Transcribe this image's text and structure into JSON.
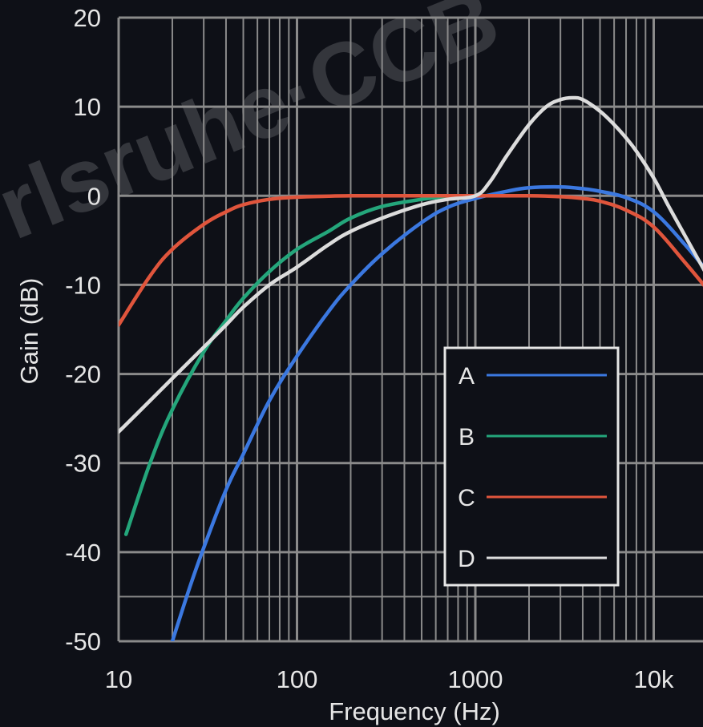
{
  "watermark": "rlsruhe·CCB",
  "chart_data": {
    "type": "line",
    "xscale": "log",
    "xlim": [
      10,
      20000
    ],
    "ylim": [
      -50,
      20
    ],
    "xlabel": "Frequency (Hz)",
    "ylabel": "Gain (dB)",
    "grid": true,
    "legend_position": "bottom-right",
    "xticks": [
      {
        "value": 10,
        "label": "10"
      },
      {
        "value": 100,
        "label": "100"
      },
      {
        "value": 1000,
        "label": "1000"
      },
      {
        "value": 10000,
        "label": "10k"
      }
    ],
    "yticks": [
      {
        "value": 20,
        "label": "20"
      },
      {
        "value": 10,
        "label": "10"
      },
      {
        "value": 0,
        "label": "0"
      },
      {
        "value": -10,
        "label": "-10"
      },
      {
        "value": -20,
        "label": "-20"
      },
      {
        "value": -30,
        "label": "-30"
      },
      {
        "value": -40,
        "label": "-40"
      },
      {
        "value": -50,
        "label": "-50"
      }
    ],
    "series": [
      {
        "name": "A",
        "color": "#3b78e0",
        "x": [
          20,
          25,
          30,
          40,
          50,
          70,
          100,
          150,
          200,
          300,
          500,
          700,
          1000,
          1500,
          2000,
          3000,
          4000,
          5000,
          7000,
          10000,
          15000,
          20000
        ],
        "y": [
          -50,
          -44,
          -39.5,
          -33,
          -29,
          -23,
          -18,
          -13,
          -10,
          -6.5,
          -3,
          -1.3,
          -0.3,
          0.5,
          0.9,
          1.0,
          0.8,
          0.5,
          -0.2,
          -1.8,
          -5.5,
          -8.5
        ]
      },
      {
        "name": "B",
        "color": "#24a67b",
        "x": [
          11,
          15,
          20,
          30,
          40,
          50,
          70,
          100,
          150,
          200,
          300,
          500,
          700,
          1000
        ],
        "y": [
          -38,
          -30,
          -24,
          -17.5,
          -14,
          -11.5,
          -8.5,
          -6,
          -4,
          -2.5,
          -1.2,
          -0.4,
          -0.1,
          0
        ]
      },
      {
        "name": "C",
        "color": "#e0553c",
        "x": [
          10,
          15,
          20,
          30,
          40,
          50,
          70,
          100,
          150,
          200,
          300,
          500,
          1000,
          2000,
          3000,
          4000,
          5000,
          7000,
          10000,
          15000,
          20000
        ],
        "y": [
          -14.5,
          -9,
          -6,
          -3.2,
          -1.8,
          -1.0,
          -0.4,
          -0.15,
          -0.05,
          0,
          0,
          0,
          0,
          0,
          -0.1,
          -0.3,
          -0.6,
          -1.6,
          -3.5,
          -7.5,
          -10.5
        ]
      },
      {
        "name": "D",
        "color": "#dcdcdc",
        "x": [
          10,
          15,
          20,
          30,
          40,
          50,
          70,
          100,
          150,
          200,
          300,
          500,
          700,
          1000,
          1200,
          1500,
          2000,
          2500,
          3000,
          3500,
          4000,
          5000,
          6000,
          7000,
          8000,
          10000,
          12000,
          15000,
          20000
        ],
        "y": [
          -26.5,
          -23,
          -20.5,
          -17,
          -14.5,
          -12.5,
          -10,
          -8,
          -5.5,
          -4,
          -2.5,
          -1.0,
          -0.4,
          0,
          1.5,
          4.5,
          8,
          10,
          10.8,
          11,
          10.8,
          9.5,
          8,
          6.5,
          5,
          2,
          -1,
          -4.5,
          -9
        ]
      }
    ]
  }
}
